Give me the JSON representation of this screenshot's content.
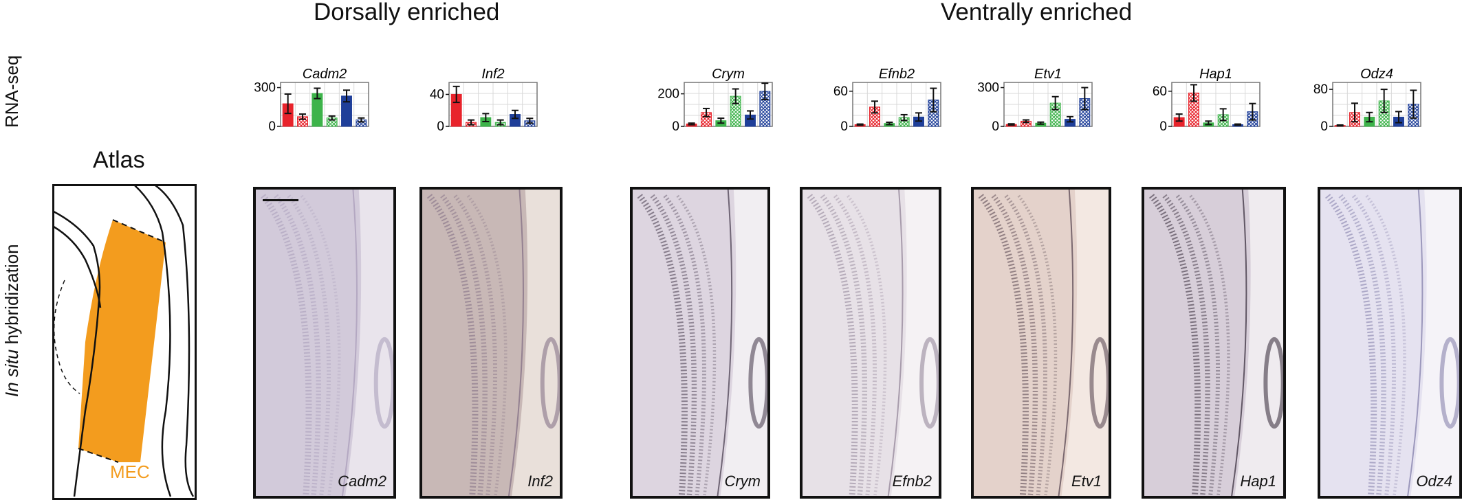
{
  "headings": {
    "dorsal": "Dorsally enriched",
    "ventral": "Ventrally enriched"
  },
  "row_labels": {
    "rnaseq": "RNA-seq",
    "ish_italic": "In situ",
    "ish_rest": " hybridization"
  },
  "atlas": {
    "title": "Atlas",
    "region_label": "MEC",
    "region_color": "#f39c1e"
  },
  "series_colors": [
    "#e8232b",
    "#e8232b",
    "#3db34a",
    "#3db34a",
    "#1f3f99",
    "#1f3f99"
  ],
  "series_patterns": [
    "solid",
    "hatched",
    "solid",
    "hatched",
    "solid",
    "hatched"
  ],
  "chart_data": [
    {
      "type": "bar",
      "title": "Cadm2",
      "yticks": [
        0,
        300
      ],
      "ylim": [
        0,
        340
      ],
      "values": [
        175,
        75,
        255,
        65,
        235,
        50
      ],
      "errors": [
        75,
        20,
        40,
        15,
        45,
        15
      ]
    },
    {
      "type": "bar",
      "title": "Inf2",
      "yticks": [
        0,
        40
      ],
      "ylim": [
        0,
        55
      ],
      "values": [
        40,
        5,
        11,
        5,
        15,
        7
      ],
      "errors": [
        10,
        3,
        5,
        3,
        5,
        3
      ]
    },
    {
      "type": "bar",
      "title": "Crym",
      "yticks": [
        0,
        200
      ],
      "ylim": [
        0,
        270
      ],
      "values": [
        15,
        85,
        35,
        185,
        70,
        215
      ],
      "errors": [
        5,
        25,
        15,
        45,
        25,
        50
      ]
    },
    {
      "type": "bar",
      "title": "Efnb2",
      "yticks": [
        0,
        60
      ],
      "ylim": [
        0,
        75
      ],
      "values": [
        3,
        33,
        5,
        15,
        16,
        45
      ],
      "errors": [
        1,
        10,
        2,
        5,
        7,
        20
      ]
    },
    {
      "type": "bar",
      "title": "Etv1",
      "yticks": [
        0,
        300
      ],
      "ylim": [
        0,
        340
      ],
      "values": [
        15,
        40,
        25,
        180,
        55,
        215
      ],
      "errors": [
        5,
        10,
        8,
        50,
        20,
        85
      ]
    },
    {
      "type": "bar",
      "title": "Hap1",
      "yticks": [
        0,
        60
      ],
      "ylim": [
        0,
        75
      ],
      "values": [
        15,
        57,
        6,
        20,
        3,
        25
      ],
      "errors": [
        6,
        14,
        3,
        10,
        1,
        14
      ]
    },
    {
      "type": "bar",
      "title": "Odz4",
      "yticks": [
        0,
        80
      ],
      "ylim": [
        0,
        95
      ],
      "values": [
        2,
        30,
        20,
        55,
        20,
        48
      ],
      "errors": [
        1,
        20,
        10,
        25,
        12,
        30
      ]
    }
  ],
  "panels": [
    {
      "label": "Cadm2",
      "bg": "#e9e4ec",
      "tissue": "#a69ab8",
      "tint": "#cfc6d8"
    },
    {
      "label": "Inf2",
      "bg": "#e9e0da",
      "tissue": "#7d6a82",
      "tint": "#c4b4b1"
    },
    {
      "label": "Crym",
      "bg": "#f1eef2",
      "tissue": "#403447",
      "tint": "#dad2de"
    },
    {
      "label": "Efnb2",
      "bg": "#f5f2f4",
      "tissue": "#8d7f93",
      "tint": "#e6dfe6"
    },
    {
      "label": "Etv1",
      "bg": "#f3e8e2",
      "tissue": "#4e3c48",
      "tint": "#e2cfc9"
    },
    {
      "label": "Hap1",
      "bg": "#efebef",
      "tissue": "#2f2533",
      "tint": "#d4cbd6"
    },
    {
      "label": "Odz4",
      "bg": "#f5f3f8",
      "tissue": "#7e79a5",
      "tint": "#e3e0ee"
    }
  ]
}
